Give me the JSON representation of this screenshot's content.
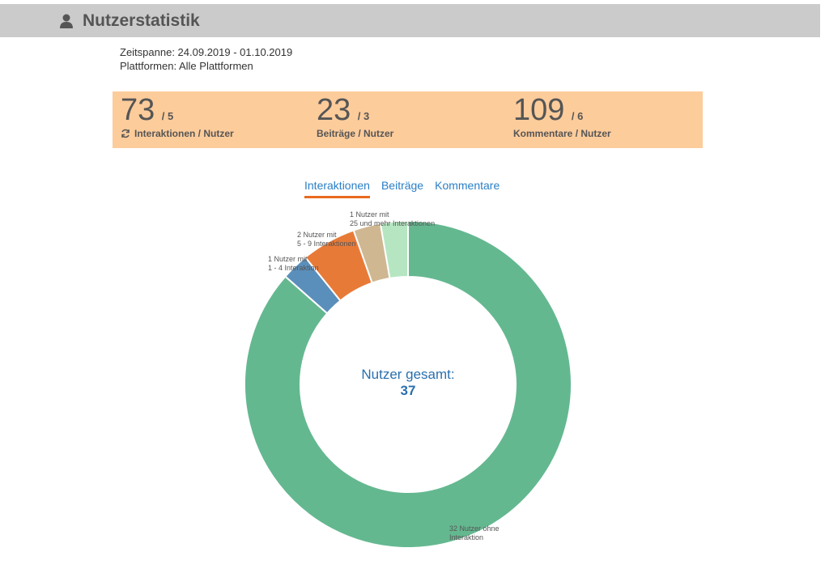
{
  "header": {
    "title": "Nutzerstatistik",
    "icon": "user-icon"
  },
  "meta": {
    "zeitspanne": "Zeitspanne: 24.09.2019 - 01.10.2019",
    "plattformen": "Plattformen: Alle Plattformen"
  },
  "stats": [
    {
      "value": "73",
      "per": "/ 5",
      "label": "Interaktionen / Nutzer",
      "icon": "refresh-icon"
    },
    {
      "value": "23",
      "per": "/ 3",
      "label": "Beiträge / Nutzer"
    },
    {
      "value": "109",
      "per": "/ 6",
      "label": "Kommentare / Nutzer"
    }
  ],
  "tabs": [
    {
      "label": "Interaktionen",
      "active": true
    },
    {
      "label": "Beiträge",
      "active": false
    },
    {
      "label": "Kommentare",
      "active": false
    }
  ],
  "colors": {
    "accent": "#e96a1f",
    "link": "#2a7fc6",
    "stats_bg": "#fdcc9b",
    "header_bg": "#cbcbcb"
  },
  "chart_data": {
    "type": "pie",
    "donut": true,
    "center_title": "Nutzer gesamt:",
    "center_value": "37",
    "slices": [
      {
        "value": 32,
        "label_lines": [
          "32 Nutzer ohne",
          "Interaktion"
        ],
        "color": "#64b890"
      },
      {
        "value": 1,
        "label_lines": [
          "1 Nutzer mit",
          "1 - 4 Interaktion"
        ],
        "color": "#5b8fbb"
      },
      {
        "value": 2,
        "label_lines": [
          "2 Nutzer mit",
          "5 - 9 Interaktionen"
        ],
        "color": "#e87a38"
      },
      {
        "value": 1,
        "label_lines": [
          "",
          ""
        ],
        "color": "#cfb792"
      },
      {
        "value": 1,
        "label_lines": [
          "1 Nutzer mit",
          "25 und mehr Interaktionen"
        ],
        "color": "#b5e6c1"
      }
    ]
  }
}
